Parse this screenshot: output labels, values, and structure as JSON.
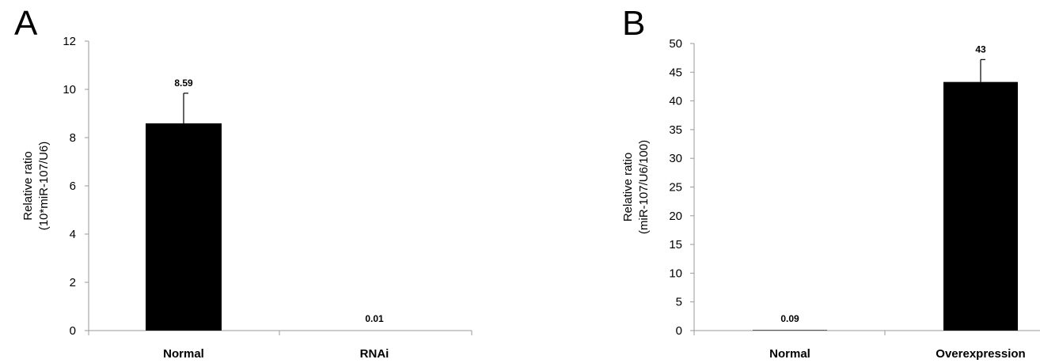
{
  "chart_data": [
    {
      "type": "bar",
      "panel": "A",
      "categories": [
        "Normal",
        "RNAi"
      ],
      "values": [
        8.59,
        0.01
      ],
      "value_labels": [
        "8.59",
        "0.01"
      ],
      "error_plus": [
        1.25,
        0
      ],
      "ylabel_lines": [
        "Relative ratio",
        "(10*miR-107/U6)"
      ],
      "ylim": [
        0,
        12
      ],
      "yticks": [
        0,
        2,
        4,
        6,
        8,
        10,
        12
      ],
      "grid": false,
      "bar_color": "#000000"
    },
    {
      "type": "bar",
      "panel": "B",
      "categories": [
        "Normal",
        "Overexpression"
      ],
      "values": [
        0.09,
        43.3
      ],
      "value_labels": [
        "0.09",
        "43"
      ],
      "error_plus": [
        0,
        3.9
      ],
      "ylabel_lines": [
        "Relative ratio",
        "(miR-107/U6/100)"
      ],
      "ylim": [
        0,
        50
      ],
      "yticks": [
        0,
        5,
        10,
        15,
        20,
        25,
        30,
        35,
        40,
        45,
        50
      ],
      "grid": false,
      "bar_color": "#000000"
    }
  ]
}
